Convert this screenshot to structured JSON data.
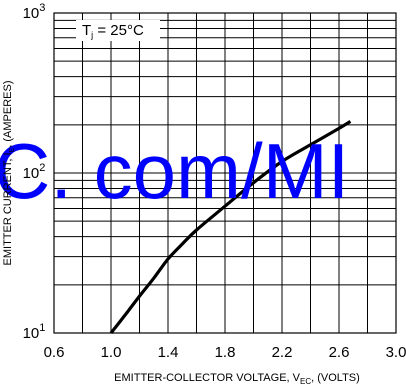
{
  "chart_data": {
    "type": "line",
    "xlabel": "EMITTER-COLLECTOR VOLTAGE, V",
    "xlabel_sub": "EC",
    "xlabel_tail": ", (VOLTS)",
    "ylabel": "EMITTER CURRENT, I",
    "ylabel_sub": "E",
    "ylabel_tail": ", (AMPERES)",
    "annotation": "T",
    "annotation_sub": "j",
    "annotation_tail": " = 25°C",
    "x_ticks": [
      "0.6",
      "1.0",
      "1.4",
      "1.8",
      "2.2",
      "2.6",
      "3.0"
    ],
    "y_ticks": [
      {
        "base": "10",
        "exp": "3"
      },
      {
        "base": "10",
        "exp": "2"
      },
      {
        "base": "10",
        "exp": "1"
      }
    ],
    "xlim": [
      0.6,
      3.0
    ],
    "ylim": [
      10,
      1000
    ],
    "yscale": "log",
    "grid": true,
    "series": [
      {
        "x": [
          1.0,
          1.1,
          1.2,
          1.3,
          1.4,
          1.5,
          1.6,
          1.8,
          2.0,
          2.2,
          2.4,
          2.6,
          2.68
        ],
        "y": [
          10,
          13,
          17,
          22,
          29,
          36,
          44,
          62,
          87,
          118,
          150,
          190,
          210
        ]
      }
    ],
    "color": "#000000"
  },
  "watermark": "C. com/MI",
  "watermark_color": "#0000ff"
}
